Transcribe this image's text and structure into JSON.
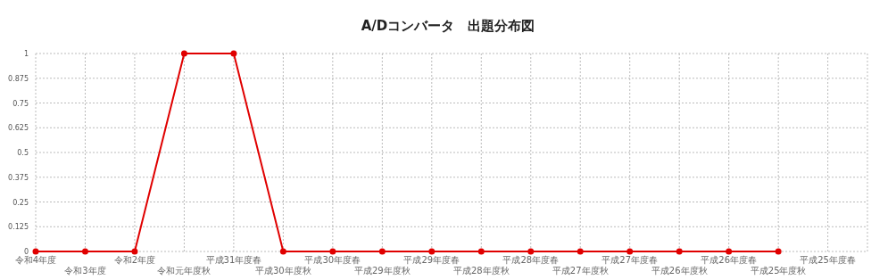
{
  "chart_data": {
    "type": "line",
    "title": "A/Dコンバータ　出題分布図",
    "categories": [
      "令和4年度",
      "令和3年度",
      "令和2年度",
      "令和元年度秋",
      "平成31年度春",
      "平成30年度秋",
      "平成30年度春",
      "平成29年度秋",
      "平成29年度春",
      "平成28年度秋",
      "平成28年度春",
      "平成27年度秋",
      "平成27年度春",
      "平成26年度秋",
      "平成26年度春",
      "平成25年度秋",
      "平成25年度春"
    ],
    "series": [
      {
        "color": "#e00000",
        "values": [
          0,
          0,
          0,
          1,
          1,
          0,
          0,
          0,
          0,
          0,
          0,
          0,
          0,
          0,
          0,
          0,
          null
        ]
      }
    ],
    "ylim": [
      0,
      1
    ],
    "yticks": [
      0,
      0.125,
      0.25,
      0.375,
      0.5,
      0.625,
      0.75,
      0.875,
      1
    ],
    "grid": true,
    "marker": "circle",
    "line_style": "solid"
  }
}
